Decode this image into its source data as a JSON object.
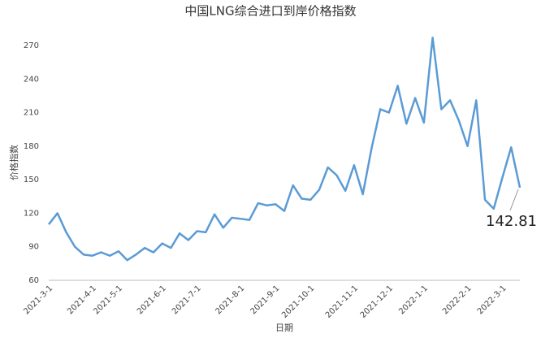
{
  "chart_data": {
    "type": "line",
    "title": "中国LNG综合进口到岸价格指数",
    "x_label": "日期",
    "y_label": "价格指数",
    "categories": [
      "2021-3-1",
      null,
      null,
      null,
      null,
      "2021-4-1",
      null,
      null,
      "2021-5-1",
      null,
      null,
      null,
      null,
      "2021-6-1",
      null,
      null,
      null,
      "2021-7-1",
      null,
      null,
      null,
      null,
      "2021-8-1",
      null,
      null,
      null,
      "2021-9-1",
      null,
      null,
      null,
      "2021-10-1",
      null,
      null,
      null,
      null,
      "2021-11-1",
      null,
      null,
      null,
      "2021-12-1",
      null,
      null,
      null,
      "2022-1-1",
      null,
      null,
      null,
      null,
      "2022-2-1",
      null,
      null,
      null,
      "2022-3-1",
      null,
      null
    ],
    "series": [
      {
        "name": "价格指数",
        "color": "#5b9bd5",
        "values": [
          110,
          120,
          103,
          90,
          83,
          82,
          85,
          82,
          86,
          78,
          83,
          89,
          85,
          93,
          89,
          102,
          96,
          104,
          103,
          119,
          107,
          116,
          115,
          114,
          129,
          127,
          128,
          122,
          145,
          133,
          132,
          141,
          161,
          154,
          140,
          163,
          137,
          178,
          213,
          210,
          234,
          200,
          223,
          201,
          277,
          213,
          221,
          203,
          180,
          221,
          132,
          124,
          152,
          179,
          142.81
        ]
      }
    ],
    "annotation": "142.81",
    "ylim": [
      60,
      270
    ],
    "yticks": [
      60,
      90,
      120,
      150,
      180,
      210,
      240,
      270
    ],
    "grid": false
  }
}
